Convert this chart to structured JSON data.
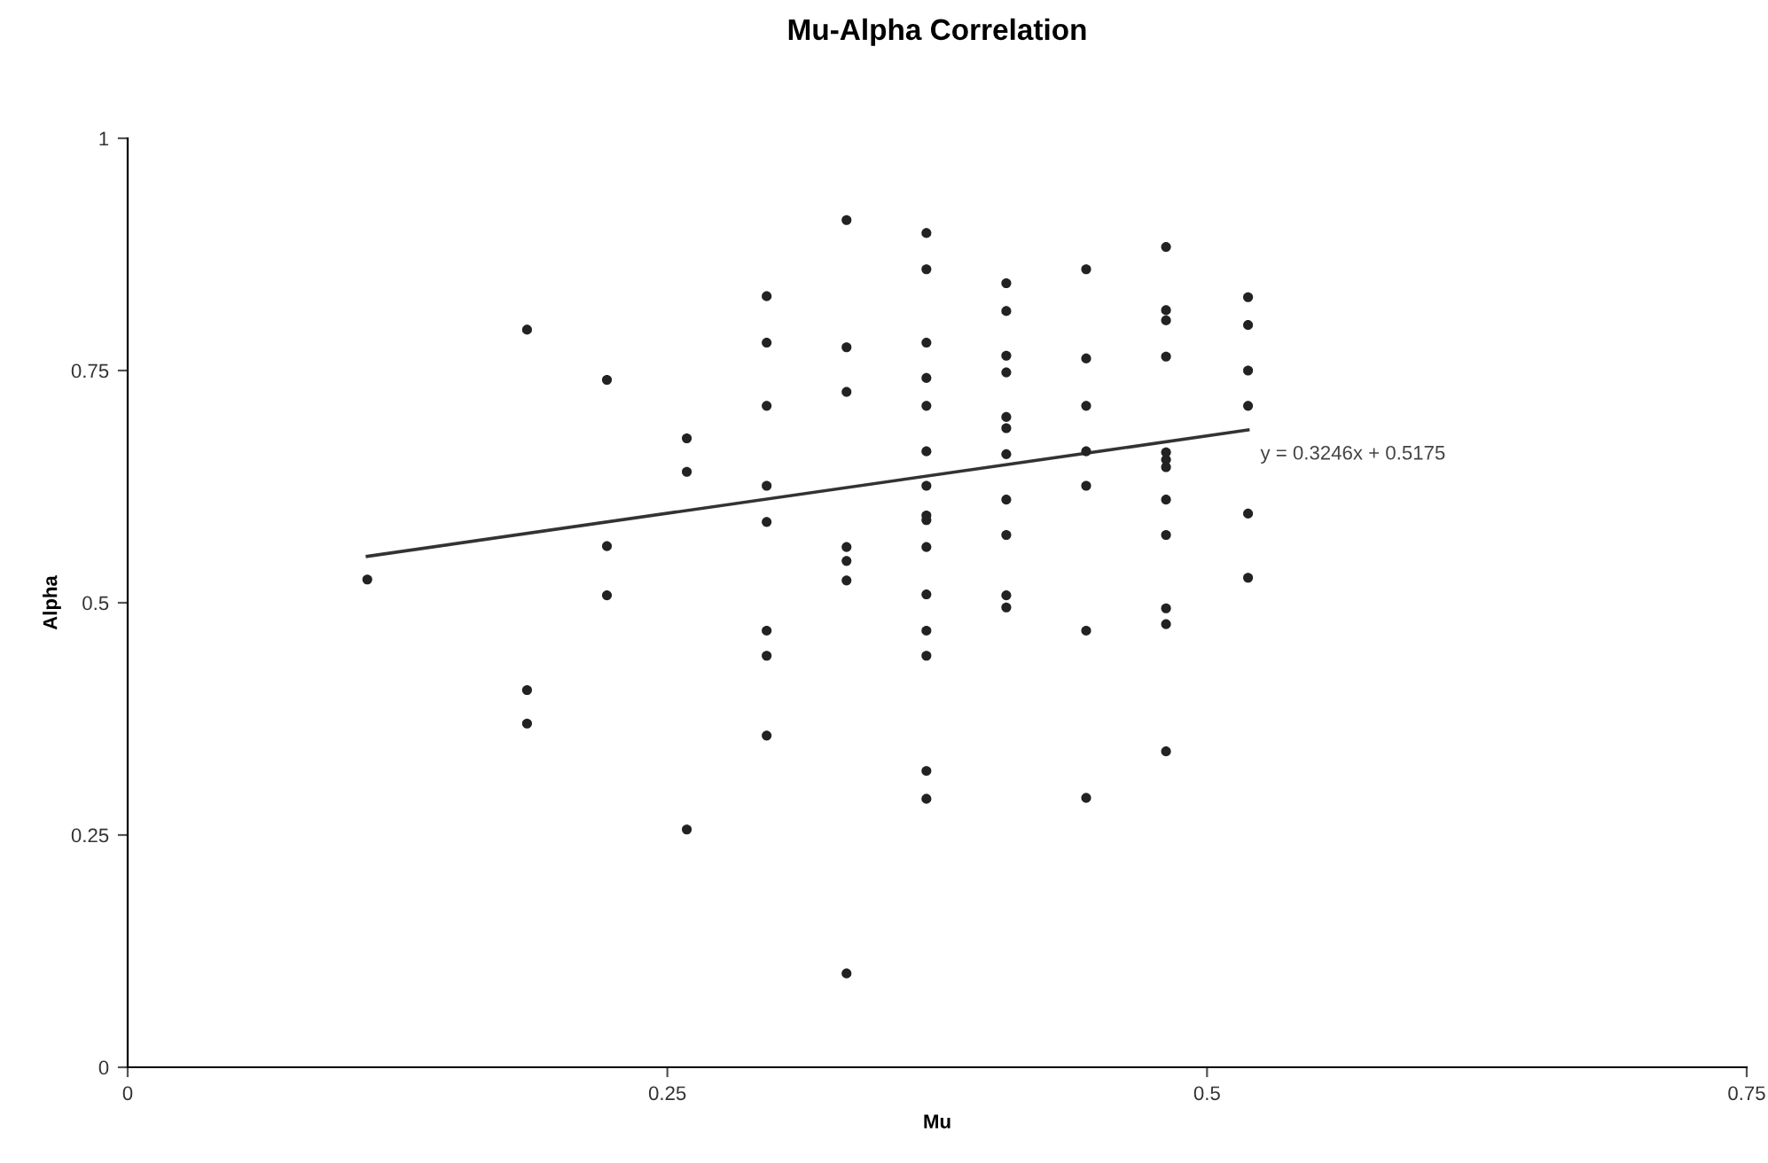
{
  "chart_data": {
    "type": "scatter",
    "title": "Mu-Alpha Correlation",
    "xlabel": "Mu",
    "ylabel": "Alpha",
    "xlim": [
      0,
      0.75
    ],
    "ylim": [
      0,
      1
    ],
    "xticks": [
      0,
      0.25,
      0.5,
      0.75
    ],
    "yticks": [
      0,
      0.25,
      0.5,
      0.75,
      1
    ],
    "grid": false,
    "legend": false,
    "series": [
      {
        "color": "#222222",
        "marker": "circle",
        "x": [
          0.111,
          0.185,
          0.185,
          0.185,
          0.222,
          0.222,
          0.222,
          0.259,
          0.259,
          0.259,
          0.296,
          0.296,
          0.296,
          0.296,
          0.296,
          0.296,
          0.296,
          0.296,
          0.333,
          0.333,
          0.333,
          0.333,
          0.333,
          0.333,
          0.333,
          0.37,
          0.37,
          0.37,
          0.37,
          0.37,
          0.37,
          0.37,
          0.37,
          0.37,
          0.37,
          0.37,
          0.37,
          0.37,
          0.37,
          0.37,
          0.407,
          0.407,
          0.407,
          0.407,
          0.407,
          0.407,
          0.407,
          0.407,
          0.407,
          0.407,
          0.407,
          0.444,
          0.444,
          0.444,
          0.444,
          0.444,
          0.444,
          0.444,
          0.481,
          0.481,
          0.481,
          0.481,
          0.481,
          0.481,
          0.481,
          0.481,
          0.481,
          0.481,
          0.481,
          0.481,
          0.519,
          0.519,
          0.519,
          0.519,
          0.519,
          0.519
        ],
        "values": [
          0.525,
          0.794,
          0.406,
          0.37,
          0.74,
          0.561,
          0.508,
          0.677,
          0.641,
          0.256,
          0.83,
          0.78,
          0.712,
          0.626,
          0.587,
          0.47,
          0.443,
          0.357,
          0.912,
          0.775,
          0.727,
          0.56,
          0.545,
          0.524,
          0.101,
          0.898,
          0.859,
          0.78,
          0.742,
          0.712,
          0.663,
          0.626,
          0.594,
          0.589,
          0.56,
          0.509,
          0.47,
          0.443,
          0.319,
          0.289,
          0.844,
          0.814,
          0.766,
          0.748,
          0.7,
          0.688,
          0.66,
          0.611,
          0.573,
          0.508,
          0.495,
          0.859,
          0.763,
          0.712,
          0.663,
          0.626,
          0.47,
          0.29,
          0.883,
          0.815,
          0.804,
          0.765,
          0.662,
          0.654,
          0.646,
          0.611,
          0.573,
          0.494,
          0.477,
          0.34,
          0.829,
          0.799,
          0.75,
          0.712,
          0.596,
          0.527
        ]
      },
      {
        "type": "line",
        "color": "#333333",
        "marker": "none",
        "line_style": "solid",
        "x": [
          0.111,
          0.519
        ],
        "values": [
          0.55,
          0.686
        ]
      }
    ],
    "annotations": [
      {
        "text": "y = 0.3246x + 0.5175",
        "x": 0.519,
        "y": 0.686
      }
    ]
  }
}
